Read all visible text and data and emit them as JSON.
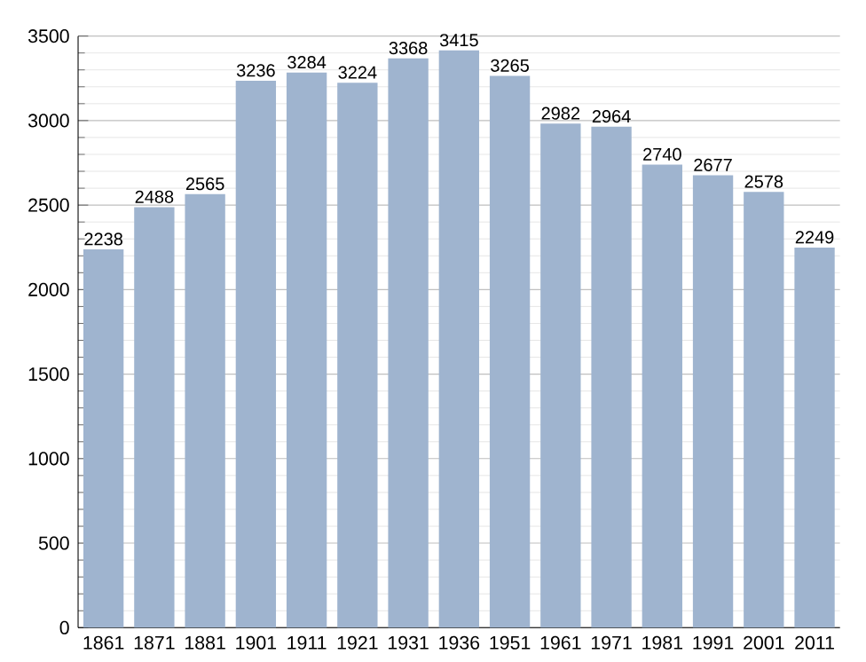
{
  "chart_data": {
    "type": "bar",
    "categories": [
      "1861",
      "1871",
      "1881",
      "1901",
      "1911",
      "1921",
      "1931",
      "1936",
      "1951",
      "1961",
      "1971",
      "1981",
      "1991",
      "2001",
      "2011"
    ],
    "values": [
      2238,
      2488,
      2565,
      3236,
      3284,
      3224,
      3368,
      3415,
      3265,
      2982,
      2964,
      2740,
      2677,
      2578,
      2249
    ],
    "color": "#9fb4cf",
    "ylim": [
      0,
      3500
    ],
    "yticks": [
      0,
      500,
      1000,
      1500,
      2000,
      2500,
      3000,
      3500
    ],
    "grid": "y",
    "data_labels": true
  }
}
